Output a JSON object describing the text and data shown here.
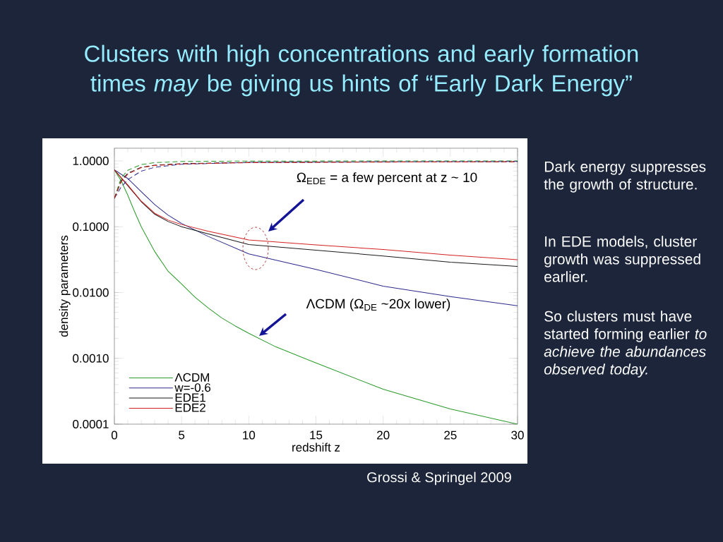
{
  "chart_data": {
    "type": "line",
    "title": "Clusters with high concentrations and early formation times *may* be giving us hints of “Early Dark Energy”",
    "xlabel": "redshift z",
    "ylabel": "density parameters",
    "log": "y",
    "xlim": [
      0,
      30
    ],
    "ylim": [
      0.0001,
      1.56
    ],
    "xticks": [
      0,
      5,
      10,
      15,
      20,
      25,
      30
    ],
    "yticks": [
      {
        "value": 0.0001,
        "label": "0.0001"
      },
      {
        "value": 0.001,
        "label": "0.0010"
      },
      {
        "value": 0.01,
        "label": "0.0100"
      },
      {
        "value": 0.1,
        "label": "0.1000"
      },
      {
        "value": 1,
        "label": "1.0000"
      }
    ],
    "legend": "bottom left",
    "marker": "none",
    "line_style": "solid",
    "series": [
      {
        "name": "ΛCDM",
        "color": "#2a9a2a",
        "x": [
          0,
          0.5,
          1,
          1.5,
          2,
          3,
          4,
          5,
          6,
          7,
          8,
          9,
          10,
          12,
          15,
          20,
          25,
          30
        ],
        "values": [
          0.73,
          0.5,
          0.3,
          0.17,
          0.1,
          0.042,
          0.021,
          0.0135,
          0.0085,
          0.0058,
          0.0041,
          0.0031,
          0.0024,
          0.0015,
          0.00085,
          0.00034,
          0.00017,
          0.0001
        ]
      },
      {
        "name": "w=-0.6",
        "color": "#2a2a8c",
        "x": [
          0,
          1,
          2,
          3,
          4,
          5,
          7,
          10,
          15,
          20,
          25,
          30
        ],
        "values": [
          0.73,
          0.54,
          0.34,
          0.217,
          0.15,
          0.112,
          0.071,
          0.0386,
          0.0225,
          0.0125,
          0.0087,
          0.0063
        ]
      },
      {
        "name": "EDE1",
        "color": "#1a1a1a",
        "x": [
          0,
          1,
          2,
          3,
          4,
          5,
          7,
          10,
          15,
          20,
          25,
          30
        ],
        "values": [
          0.73,
          0.42,
          0.24,
          0.155,
          0.12,
          0.1,
          0.0775,
          0.0535,
          0.044,
          0.036,
          0.029,
          0.0249
        ]
      },
      {
        "name": "EDE2",
        "color": "#d42020",
        "x": [
          0,
          1,
          2,
          3,
          4,
          5,
          7,
          10,
          15,
          20,
          25,
          30
        ],
        "values": [
          0.73,
          0.43,
          0.245,
          0.16,
          0.126,
          0.108,
          0.085,
          0.063,
          0.053,
          0.045,
          0.037,
          0.0316
        ]
      },
      {
        "color": "#2a9a2a",
        "line_style": "dashed",
        "x": [
          0,
          0.5,
          1,
          2,
          3,
          5,
          10,
          20,
          30
        ],
        "values": [
          0.27,
          0.55,
          0.72,
          0.88,
          0.94,
          0.98,
          0.995,
          0.999,
          1.0
        ]
      },
      {
        "color": "#2a2a8c",
        "line_style": "dashed",
        "x": [
          0,
          0.5,
          1,
          2,
          3,
          5,
          10,
          20,
          30
        ],
        "values": [
          0.27,
          0.4,
          0.52,
          0.7,
          0.8,
          0.89,
          0.95,
          0.97,
          0.98
        ]
      },
      {
        "color": "#1a1a1a",
        "line_style": "dashed",
        "x": [
          0,
          0.5,
          1,
          2,
          3,
          5,
          10,
          20,
          30
        ],
        "values": [
          0.27,
          0.5,
          0.65,
          0.8,
          0.86,
          0.91,
          0.95,
          0.97,
          0.97
        ]
      },
      {
        "color": "#d42020",
        "line_style": "dashed",
        "x": [
          0,
          0.5,
          1,
          2,
          3,
          5,
          10,
          20,
          30
        ],
        "values": [
          0.27,
          0.48,
          0.63,
          0.79,
          0.85,
          0.9,
          0.94,
          0.96,
          0.97
        ]
      }
    ],
    "annotations": [
      "Ω$_{EDE}$ = a few percent at z ~ 10",
      "ΛCDM (Ω$_{DE}$ ~20x lower)",
      "Dark energy suppresses the growth of structure.",
      "In EDE models, cluster growth was suppressed earlier.",
      "So clusters must have started forming earlier *to achieve the abundances observed today.*",
      "Grossi & Springel 2009"
    ]
  }
}
